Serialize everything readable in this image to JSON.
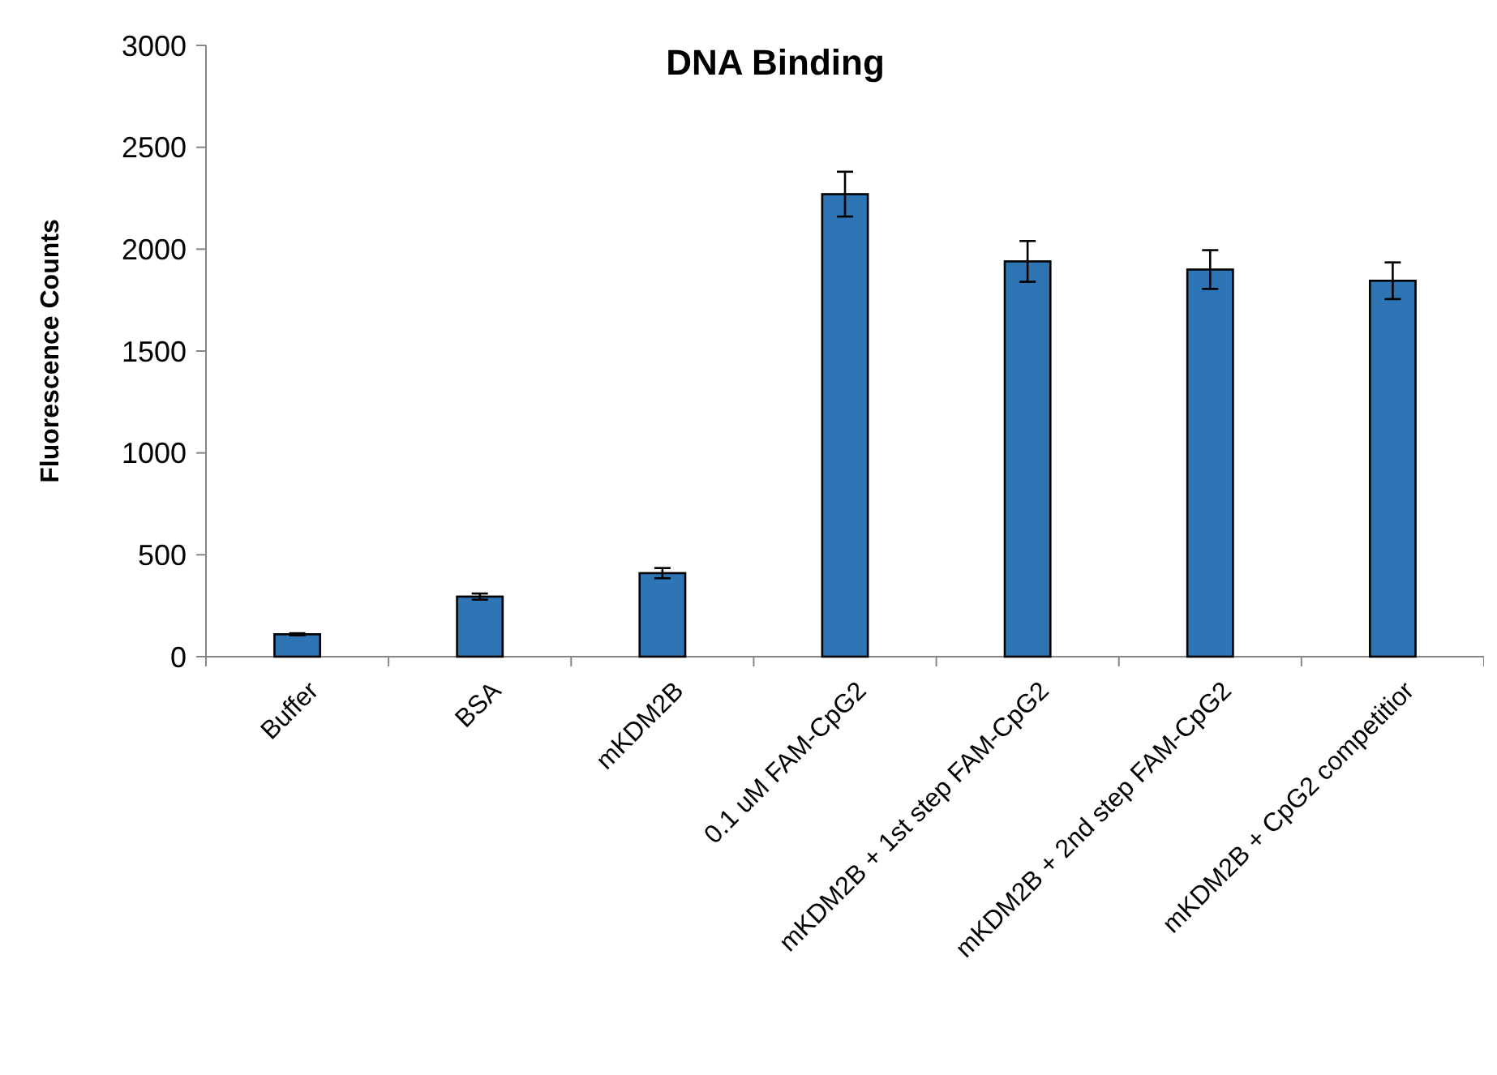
{
  "chart_data": {
    "type": "bar",
    "title": "DNA Binding",
    "ylabel": "Fluorescence Counts",
    "categories": [
      "Buffer",
      "BSA",
      "mKDM2B",
      "0.1 uM FAM-CpG2",
      "mKDM2B + 1st step FAM-CpG2",
      "mKDM2B + 2nd step FAM-CpG2",
      "mKDM2B + CpG2 competitior"
    ],
    "values": [
      110,
      295,
      410,
      2270,
      1940,
      1900,
      1845
    ],
    "errors": [
      5,
      15,
      25,
      110,
      100,
      95,
      90
    ],
    "color": "#2e75b6",
    "ylim": [
      0,
      3000
    ],
    "yticks": [
      0,
      500,
      1000,
      1500,
      2000,
      2500,
      3000
    ],
    "grid": false
  }
}
